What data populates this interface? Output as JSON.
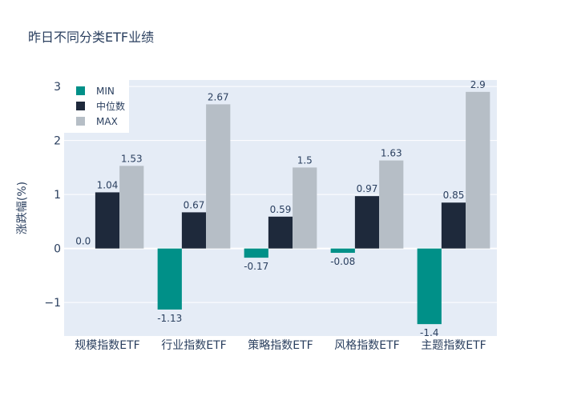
{
  "chart_data": {
    "type": "bar",
    "title": "昨日不同分类ETF业绩",
    "xlabel": "",
    "ylabel": "涨跌幅(%)",
    "ylim": [
      -1.62,
      3.12
    ],
    "yticks": [
      -1,
      0,
      1,
      2,
      3
    ],
    "ytick_labels": [
      "−1",
      "0",
      "1",
      "2",
      "3"
    ],
    "categories": [
      "规模指数ETF",
      "行业指数ETF",
      "策略指数ETF",
      "风格指数ETF",
      "主题指数ETF"
    ],
    "series": [
      {
        "name": "MIN",
        "color": "#009088",
        "values": [
          0.0,
          -1.13,
          -0.17,
          -0.08,
          -1.4
        ],
        "labels": [
          "0.0",
          "-1.13",
          "-0.17",
          "-0.08",
          "-1.4"
        ]
      },
      {
        "name": "中位数",
        "color": "#1e293b",
        "values": [
          1.04,
          0.67,
          0.59,
          0.97,
          0.85
        ],
        "labels": [
          "1.04",
          "0.67",
          "0.59",
          "0.97",
          "0.85"
        ]
      },
      {
        "name": "MAX",
        "color": "#b6bec6",
        "values": [
          1.53,
          2.67,
          1.5,
          1.63,
          2.9
        ],
        "labels": [
          "1.53",
          "2.67",
          "1.5",
          "1.63",
          "2.9"
        ]
      }
    ],
    "legend_position": "top-left",
    "plot_background": "#e5ecf6",
    "grid": true
  }
}
